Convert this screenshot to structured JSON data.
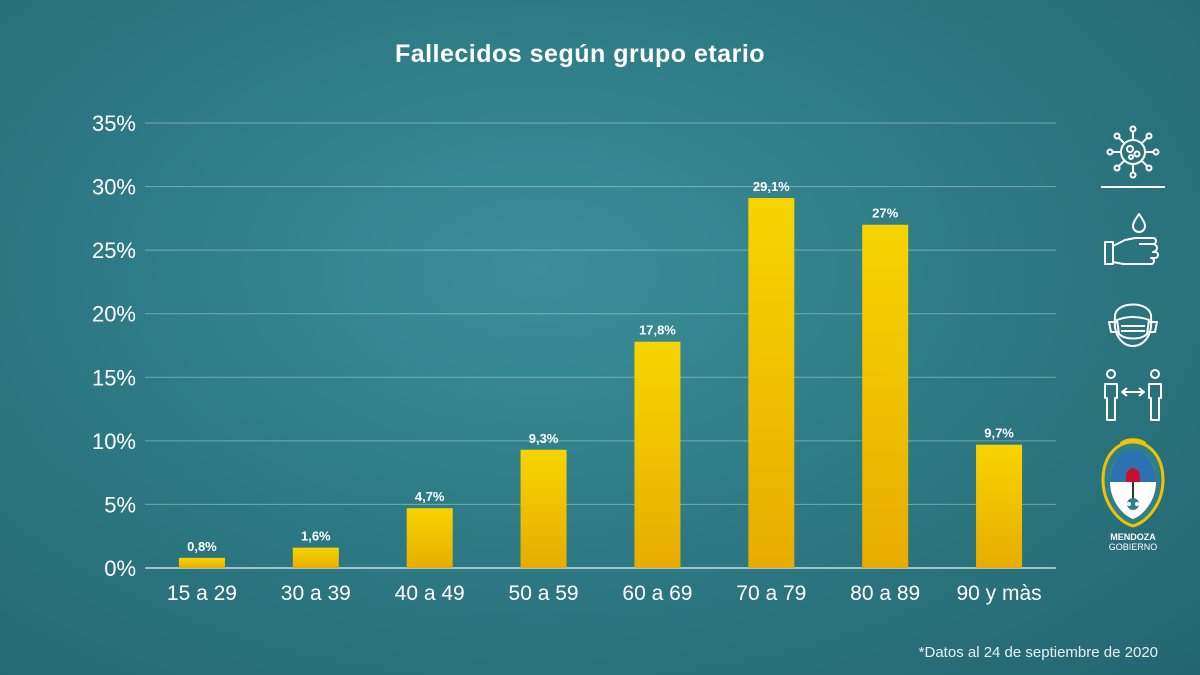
{
  "chart_data": {
    "type": "bar",
    "title": "Fallecidos según grupo etario",
    "categories": [
      "15 a 29",
      "30 a 39",
      "40 a 49",
      "50 a 59",
      "60 a 69",
      "70 a 79",
      "80 a 89",
      "90 y màs"
    ],
    "values": [
      0.8,
      1.6,
      4.7,
      9.3,
      17.8,
      29.1,
      27,
      9.7
    ],
    "value_labels": [
      "0,8%",
      "1,6%",
      "4,7%",
      "9,3%",
      "17,8%",
      "29,1%",
      "27%",
      "9,7%"
    ],
    "y_ticks": [
      0,
      5,
      10,
      15,
      20,
      25,
      30,
      35
    ],
    "y_tick_labels": [
      "0%",
      "5%",
      "10%",
      "15%",
      "20%",
      "25%",
      "30%",
      "35%"
    ],
    "ylim": [
      0,
      35
    ],
    "grid": true,
    "xlabel": "",
    "ylabel": "",
    "bar_color_top": "#f7d400",
    "bar_color_bottom": "#e8ac00"
  },
  "footnote": "*Datos al 24 de septiembre de 2020",
  "sidebar": {
    "icons": [
      "virus-icon",
      "handwash-icon",
      "face-mask-icon",
      "social-distance-icon"
    ],
    "logo_line1": "MENDOZA",
    "logo_line2": "GOBIERNO"
  }
}
